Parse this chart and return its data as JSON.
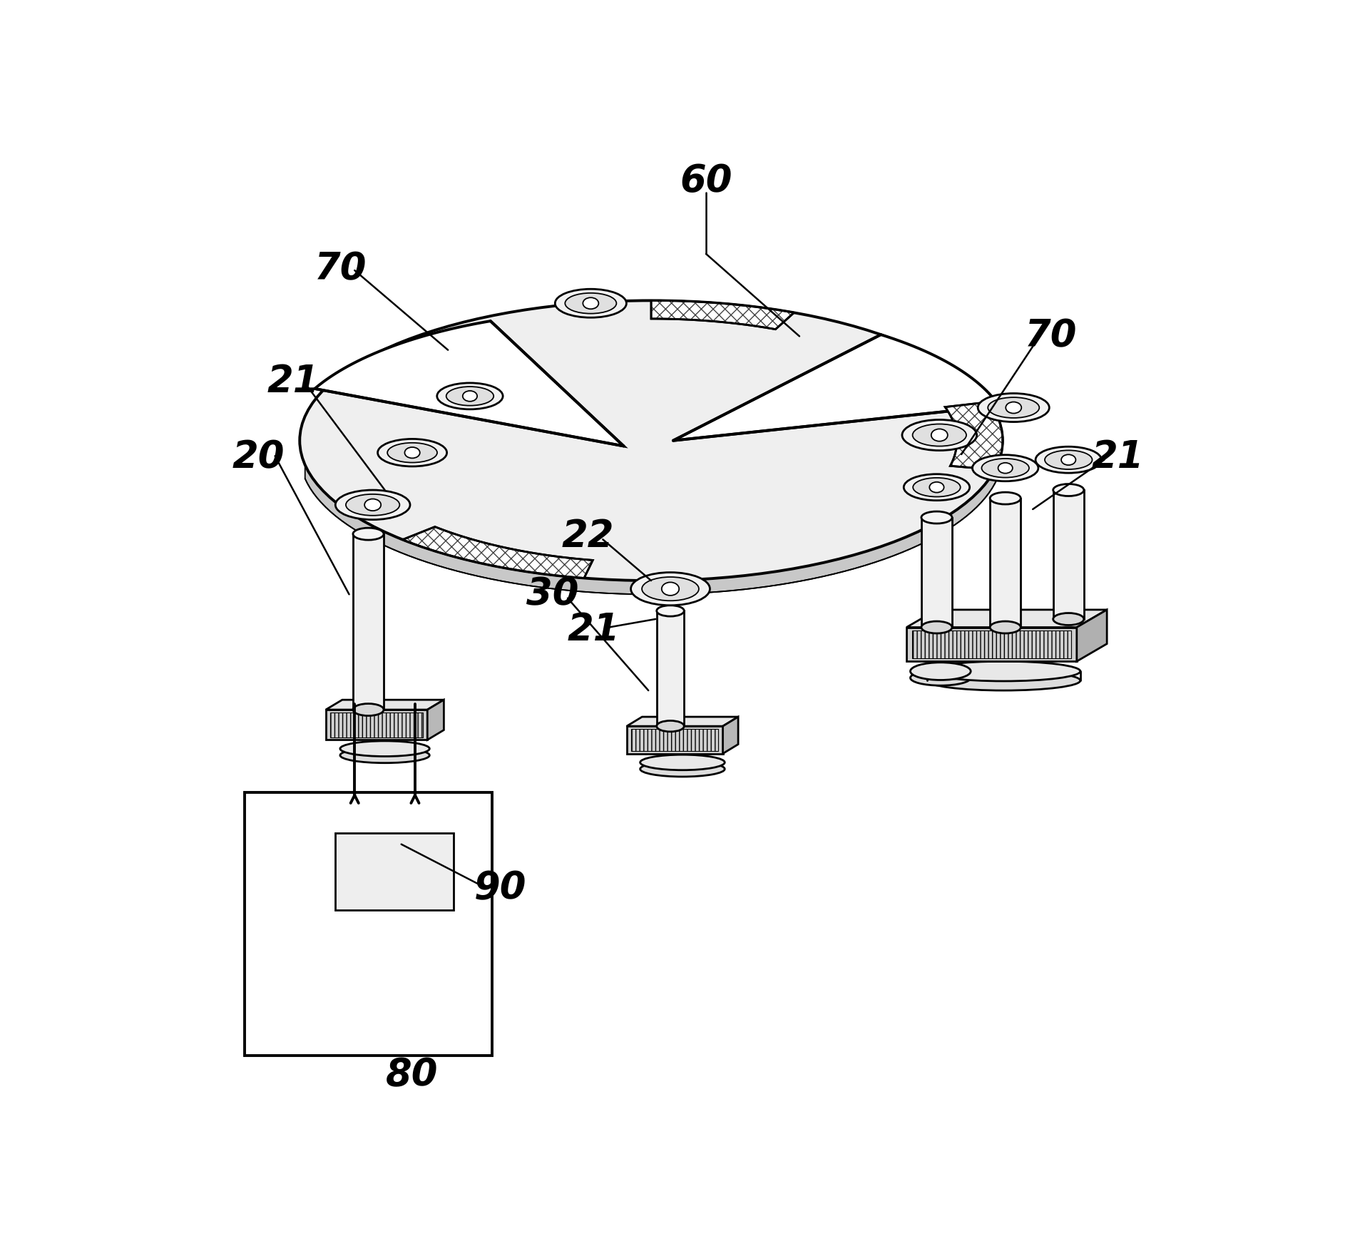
{
  "bg_color": "#ffffff",
  "line_color": "#000000",
  "figsize": [
    19.07,
    17.47
  ],
  "dpi": 100,
  "lfs": 38
}
